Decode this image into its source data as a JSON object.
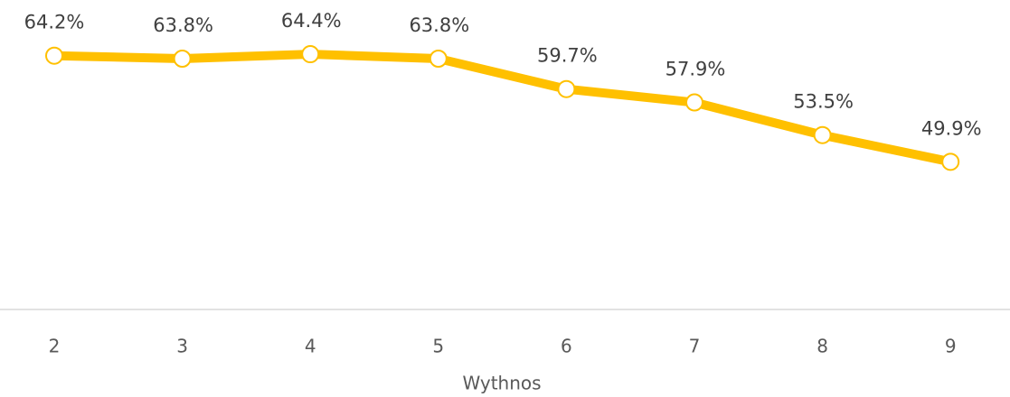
{
  "chart_data": {
    "type": "line",
    "x_label": "Wythnos",
    "categories": [
      "2",
      "3",
      "4",
      "5",
      "6",
      "7",
      "8",
      "9"
    ],
    "series": [
      {
        "name": "Wythnos",
        "color": "#ffc000",
        "values": [
          64.2,
          63.8,
          64.4,
          63.8,
          59.7,
          57.9,
          53.5,
          49.9
        ],
        "value_labels": [
          "64.2%",
          "63.8%",
          "64.4%",
          "63.8%",
          "59.7%",
          "57.9%",
          "53.5%",
          "49.9%"
        ]
      }
    ],
    "ylim": [
      30,
      70
    ]
  }
}
